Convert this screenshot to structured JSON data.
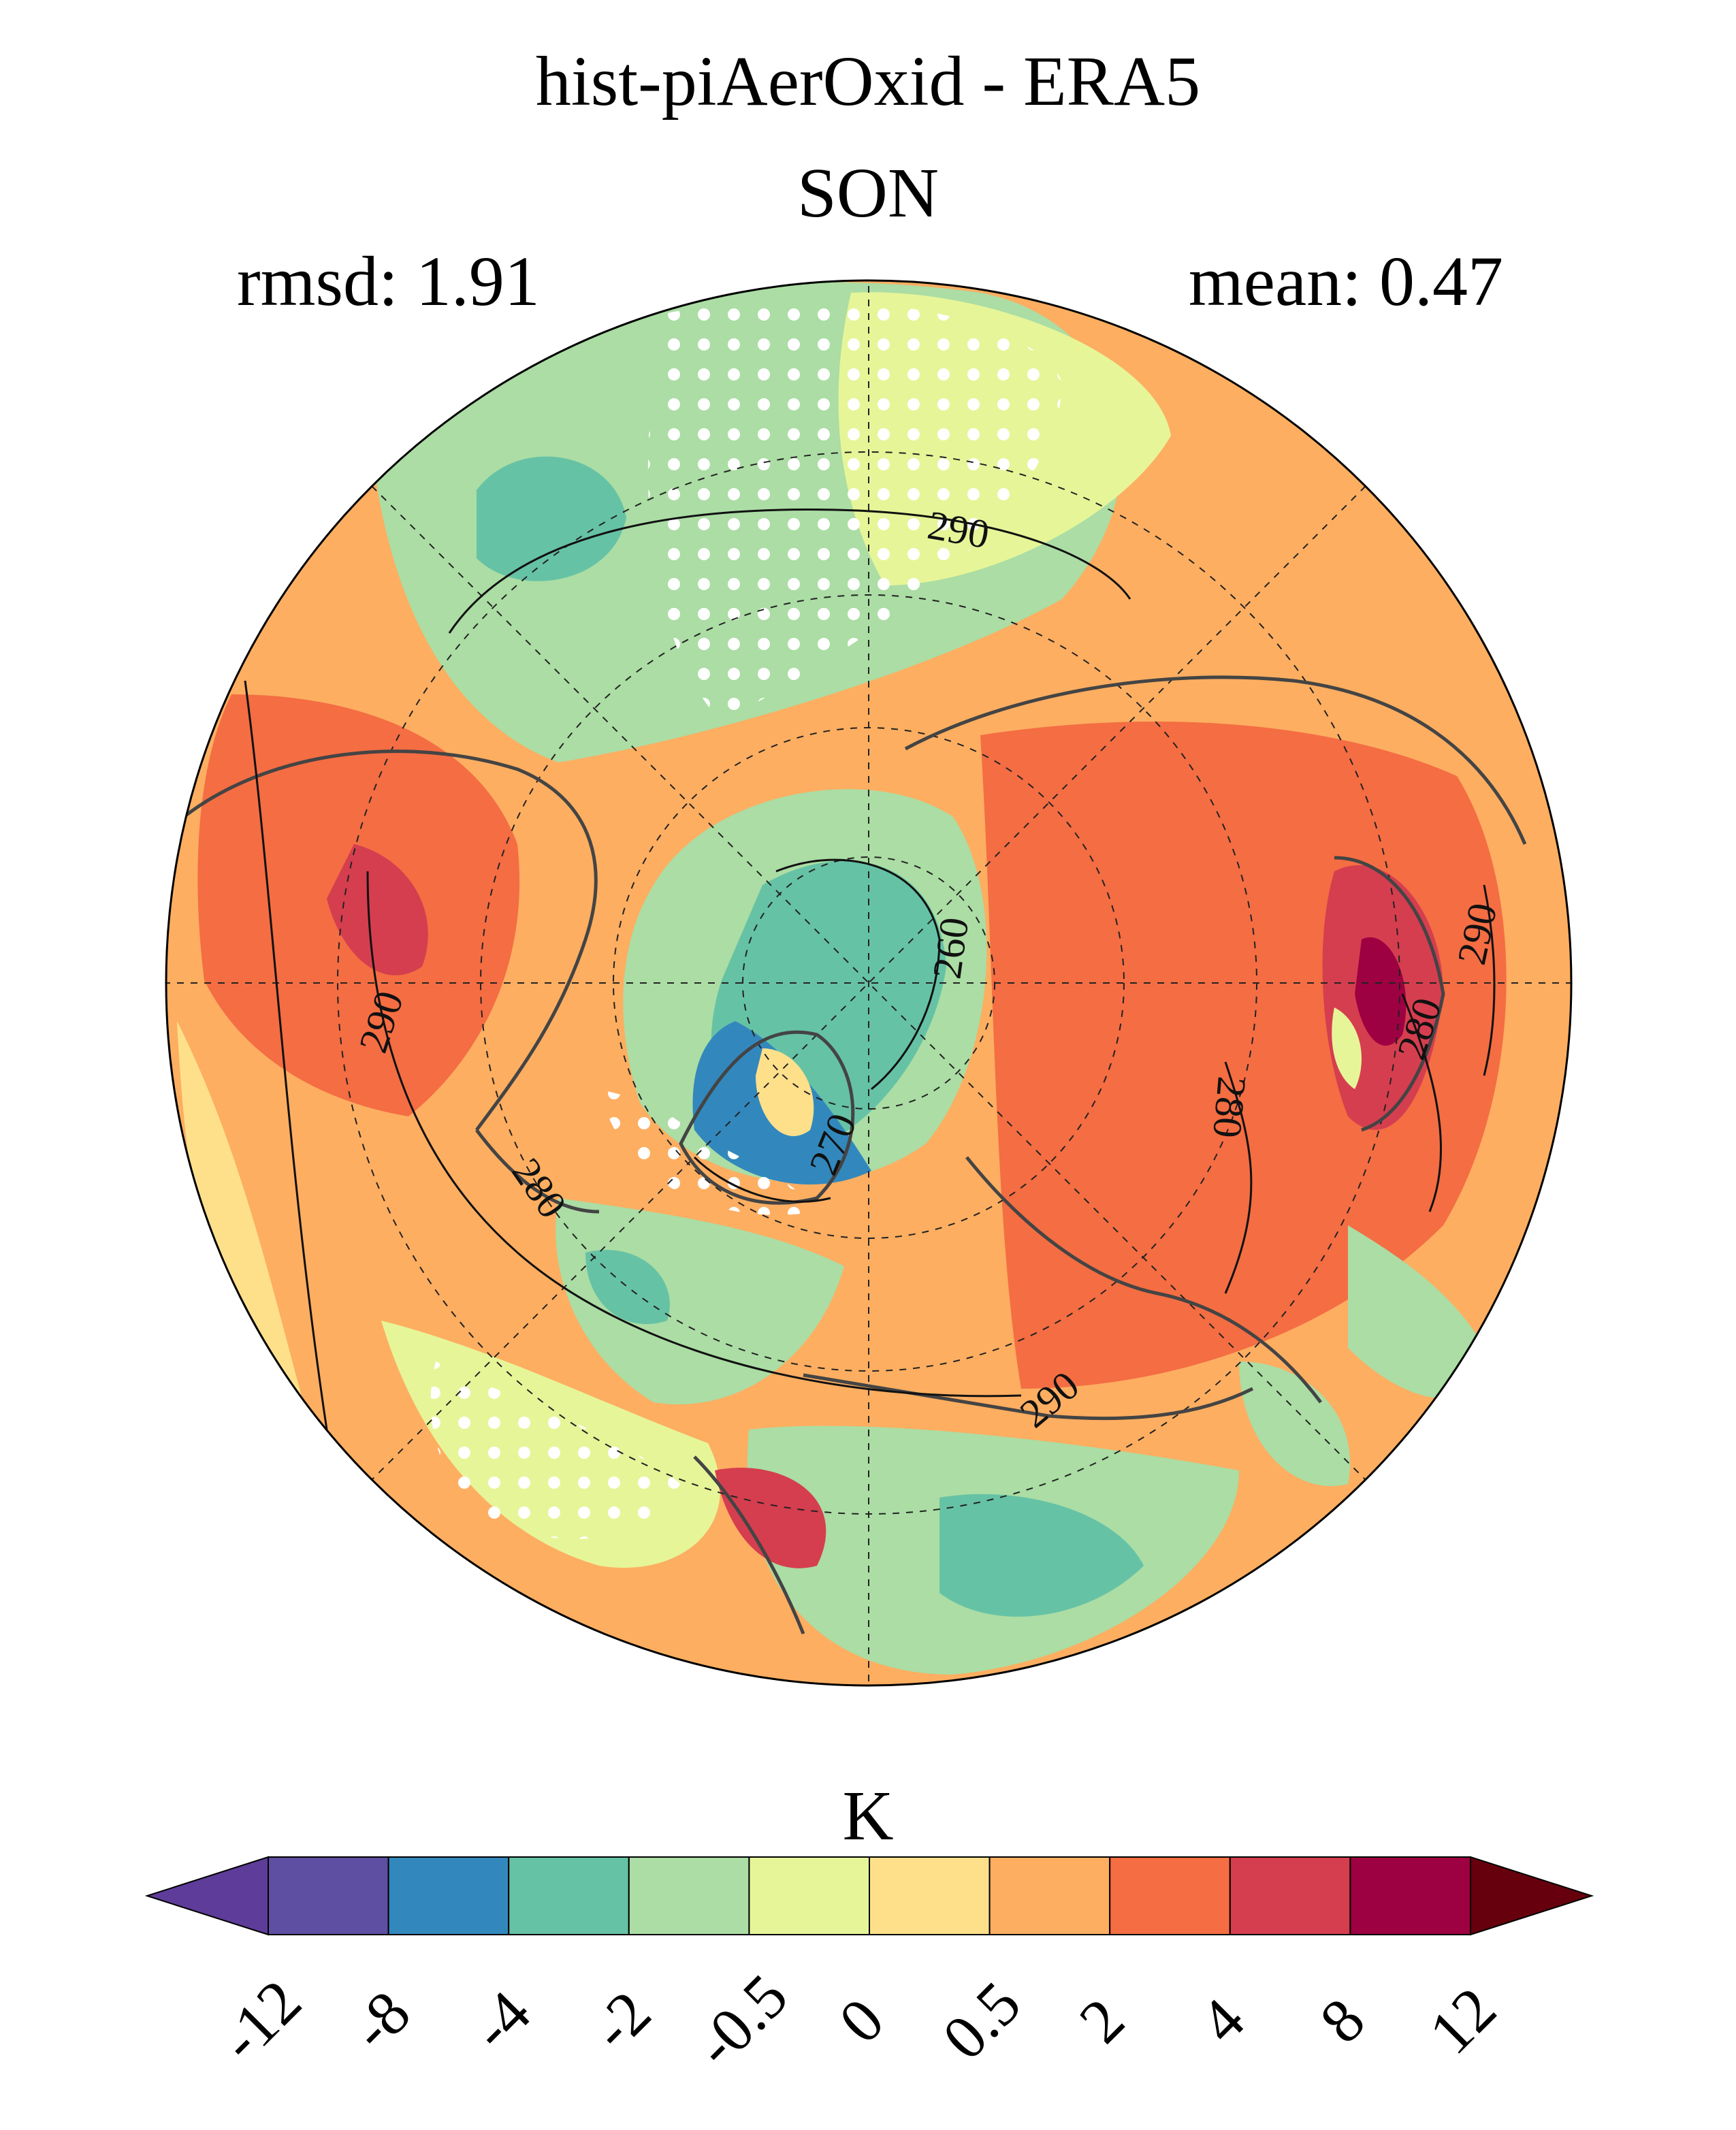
{
  "title": "hist-piAerOxid - ERA5",
  "season": "SON",
  "rmsd_label": "rmsd: 1.91",
  "mean_label": "mean: 0.47",
  "colorbar": {
    "unit": "K",
    "ticks": [
      "-12",
      "-8",
      "-4",
      "-2",
      "-0.5",
      "0",
      "0.5",
      "2",
      "4",
      "8",
      "12"
    ],
    "colors": [
      "#5e3c99",
      "#5e4fa2",
      "#3288bd",
      "#66c2a5",
      "#abdda4",
      "#e6f598",
      "#fee08b",
      "#fdae61",
      "#f46d43",
      "#d53e4f",
      "#9e0142",
      "#67000d"
    ]
  },
  "contour_labels": [
    "290",
    "290",
    "260",
    "270",
    "280",
    "280",
    "280",
    "290",
    "290",
    "280",
    "270"
  ],
  "map": {
    "projection": "north-polar-stereographic",
    "background_color": "#fdae61"
  }
}
